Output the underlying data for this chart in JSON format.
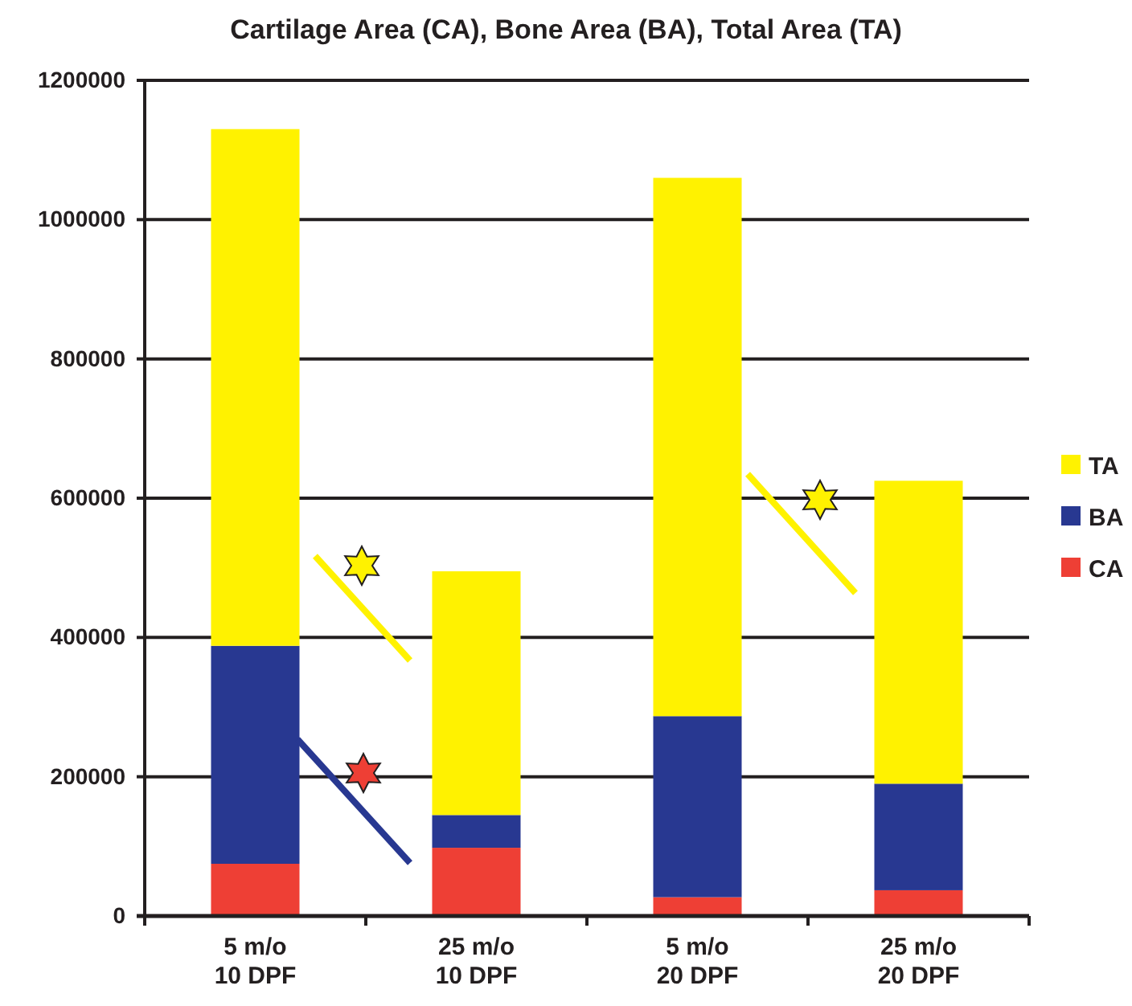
{
  "chart_data": {
    "type": "bar",
    "title": "Cartilage Area (CA), Bone Area (BA), Total Area (TA)",
    "categories": [
      "5 m/o\n10 DPF",
      "25 m/o\n10 DPF",
      "5 m/o\n20 DPF",
      "25 m/o\n20 DPF"
    ],
    "stacked": true,
    "series": [
      {
        "name": "CA",
        "color": "#ee3f35",
        "values": [
          75000,
          98000,
          27000,
          37000
        ]
      },
      {
        "name": "BA",
        "color": "#283891",
        "values": [
          313000,
          47000,
          260000,
          153000
        ]
      },
      {
        "name": "TA",
        "color": "#fff200",
        "values": [
          742000,
          350000,
          773000,
          435000
        ]
      }
    ],
    "ylim": [
      0,
      1200000
    ],
    "yticks": [
      0,
      200000,
      400000,
      600000,
      800000,
      1000000,
      1200000
    ],
    "grid": "y",
    "legend": "right"
  }
}
